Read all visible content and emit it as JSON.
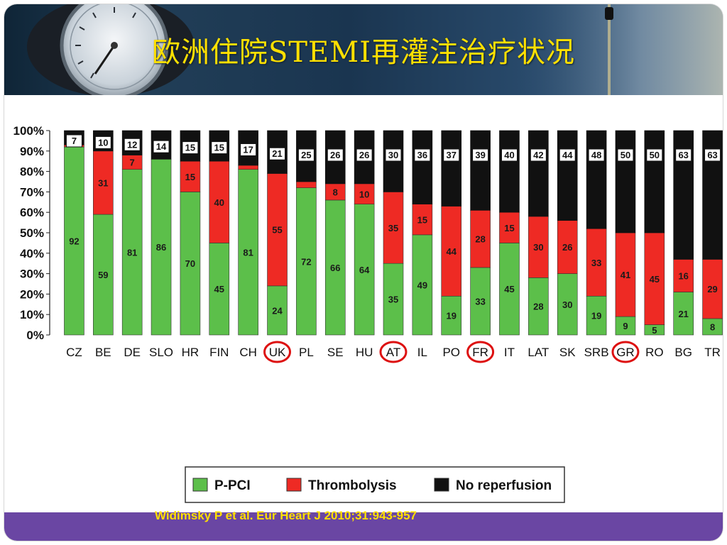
{
  "slide": {
    "title": "欧洲住院STEMI再灌注治疗状况",
    "citation": "Widimsky P et al. Eur Heart J 2010;31:943-957"
  },
  "colors": {
    "p_pci": "#5cbf4a",
    "thrombolysis": "#ee2a24",
    "no_reperfusion": "#111111",
    "highlight_circle": "#dd1010",
    "title": "#ffe000",
    "bottom_band": "#6a46a3"
  },
  "chart_data": {
    "type": "bar",
    "stacked": true,
    "categories": [
      "CZ",
      "BE",
      "DE",
      "SLO",
      "HR",
      "FIN",
      "CH",
      "UK",
      "PL",
      "SE",
      "HU",
      "AT",
      "IL",
      "PO",
      "FR",
      "IT",
      "LAT",
      "SK",
      "SRB",
      "GR",
      "RO",
      "BG",
      "TR"
    ],
    "series": [
      {
        "name": "P-PCI",
        "color": "#5cbf4a",
        "values": [
          92,
          59,
          81,
          86,
          70,
          45,
          81,
          24,
          72,
          66,
          64,
          35,
          49,
          19,
          33,
          45,
          28,
          30,
          19,
          9,
          5,
          21,
          8
        ]
      },
      {
        "name": "Thrombolysis",
        "color": "#ee2a24",
        "values": [
          1,
          31,
          7,
          0,
          15,
          40,
          2,
          55,
          3,
          8,
          10,
          35,
          15,
          44,
          28,
          15,
          30,
          26,
          33,
          41,
          45,
          16,
          29
        ]
      },
      {
        "name": "No reperfusion",
        "color": "#111111",
        "values": [
          7,
          10,
          12,
          14,
          15,
          15,
          17,
          21,
          25,
          26,
          26,
          30,
          36,
          37,
          39,
          40,
          42,
          44,
          48,
          50,
          50,
          63,
          63
        ]
      }
    ],
    "data_labels": {
      "P-PCI": [
        "92",
        "59",
        "81",
        "86",
        "70",
        "45",
        "81",
        "24",
        "72",
        "66",
        "64",
        "35",
        "49",
        "19",
        "33",
        "45",
        "28",
        "30",
        "19",
        "9",
        "5",
        "21",
        "8"
      ],
      "Thrombolysis": [
        "",
        "31",
        "7",
        "",
        "15",
        "40",
        "",
        "55",
        "",
        "8",
        "10",
        "35",
        "15",
        "44",
        "28",
        "15",
        "30",
        "26",
        "33",
        "41",
        "45",
        "16",
        "29"
      ],
      "No reperfusion": [
        "7",
        "10",
        "12",
        "14",
        "15",
        "15",
        "17",
        "21",
        "25",
        "26",
        "26",
        "30",
        "36",
        "37",
        "39",
        "40",
        "42",
        "44",
        "48",
        "50",
        "50",
        "63",
        "63"
      ]
    },
    "y_ticks": [
      "0%",
      "10%",
      "20%",
      "30%",
      "40%",
      "50%",
      "60%",
      "70%",
      "80%",
      "90%",
      "100%"
    ],
    "ylim": [
      0,
      100
    ],
    "highlighted": [
      "UK",
      "AT",
      "FR",
      "GR"
    ],
    "legend": {
      "placement": "bottom-center",
      "entries": [
        "P-PCI",
        "Thrombolysis",
        "No reperfusion"
      ]
    },
    "grid": false,
    "xlabel": "",
    "ylabel": ""
  }
}
